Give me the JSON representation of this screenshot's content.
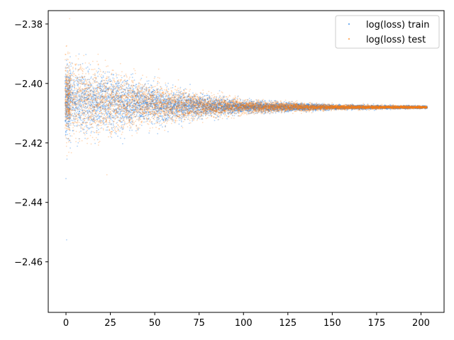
{
  "chart_data": {
    "type": "scatter",
    "title": "",
    "xlabel": "",
    "ylabel": "",
    "xlim": [
      -10,
      213
    ],
    "ylim": [
      -2.477,
      -2.3755
    ],
    "x_ticks": [
      0,
      25,
      50,
      75,
      100,
      125,
      150,
      175,
      200
    ],
    "x_tick_labels": [
      "0",
      "25",
      "50",
      "75",
      "100",
      "125",
      "150",
      "175",
      "200"
    ],
    "y_ticks": [
      -2.38,
      -2.4,
      -2.42,
      -2.44,
      -2.46
    ],
    "y_tick_labels": [
      "−2.38",
      "−2.40",
      "−2.42",
      "−2.44",
      "−2.46"
    ],
    "grid": false,
    "legend_position": "top-right",
    "series": [
      {
        "name": "log(loss) train",
        "color": "#1f7ee8",
        "center_profile": [
          [
            0,
            -2.406
          ],
          [
            25,
            -2.4065
          ],
          [
            50,
            -2.4072
          ],
          [
            75,
            -2.4077
          ],
          [
            100,
            -2.4079
          ],
          [
            150,
            -2.408
          ],
          [
            203,
            -2.408
          ]
        ],
        "spread_profile": [
          [
            0,
            0.0055
          ],
          [
            25,
            0.0045
          ],
          [
            50,
            0.003
          ],
          [
            75,
            0.0018
          ],
          [
            100,
            0.001
          ],
          [
            150,
            0.0004
          ],
          [
            203,
            0.0002
          ]
        ],
        "x_range": [
          0,
          203
        ]
      },
      {
        "name": "log(loss) test",
        "color": "#ff7f0e",
        "center_profile": [
          [
            0,
            -2.4055
          ],
          [
            25,
            -2.4062
          ],
          [
            50,
            -2.407
          ],
          [
            75,
            -2.4076
          ],
          [
            100,
            -2.4079
          ],
          [
            150,
            -2.408
          ],
          [
            203,
            -2.408
          ]
        ],
        "spread_profile": [
          [
            0,
            0.0065
          ],
          [
            25,
            0.005
          ],
          [
            50,
            0.0032
          ],
          [
            75,
            0.002
          ],
          [
            100,
            0.0011
          ],
          [
            150,
            0.0004
          ],
          [
            203,
            0.0002
          ]
        ],
        "x_range": [
          0,
          203
        ]
      }
    ]
  }
}
